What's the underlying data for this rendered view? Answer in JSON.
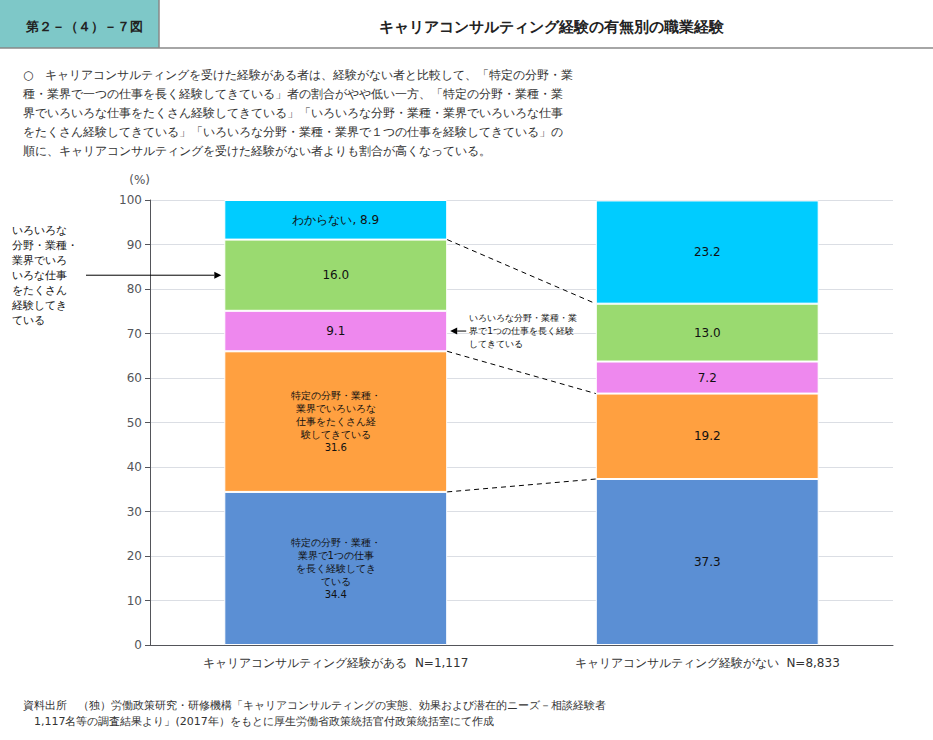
{
  "chart_data": {
    "type": "bar",
    "stacked": true,
    "figure_number": "第２－（４）－７図",
    "title": "キャリアコンサルティング経験の有無別の職業経験",
    "subtitle": "○　キャリアコンサルティングを受けた経験がある者は、経験がない者と比較して、「特定の分野・業\n種・業界で一つの仕事を長く経験してきている」者の割合がやや低い一方、「特定の分野・業種・業\n界でいろいろな仕事をたくさん経験してきている」「いろいろな分野・業種・業界でいろいろな仕事\nをたくさん経験してきている」「いろいろな分野・業種・業界で１つの仕事を経験してきている」の\n順に、キャリアコンサルティングを受けた経験がない者よりも割合が高くなっている。",
    "source": "資料出所　（独）労働政策研究・研修機構「キャリアコンサルティングの実態、効果および潜在的ニーズ－相談経験者\n　1,117名等の調査結果より」(2017年）をもとに厚生労働省政策統括官付政策統括室にて作成",
    "y_label": "(%)",
    "categories": [
      "キャリアコンサルティング経験がある  N=1,117",
      "キャリアコンサルティング経験がない  N=8,833"
    ],
    "series": [
      {
        "color": "#5B8FD4",
        "values": [
          34.4,
          37.3
        ],
        "value_labels": [
          "特定の分野・業種・\n業界で1つの仕事\nを長く経験してき\nている\n34.4",
          "37.3"
        ]
      },
      {
        "color": "#FFA040",
        "values": [
          31.6,
          19.2
        ],
        "value_labels": [
          "特定の分野・業種・\n業界でいろいろな\n仕事をたくさん経\n験してきている\n31.6",
          "19.2"
        ]
      },
      {
        "color": "#EE88EE",
        "values": [
          9.1,
          7.2
        ],
        "value_labels": [
          "9.1",
          "7.2"
        ],
        "annotation": {
          "text": "いろいろな分野・業種・業\n界で1つの仕事を長く経験\nしてきている",
          "category": "キャリアコンサルティング経験がある  N=1,117"
        }
      },
      {
        "color": "#9ADA70",
        "values": [
          16.0,
          13.0
        ],
        "value_labels": [
          "16.0",
          "13.0"
        ],
        "annotation": {
          "text": "いろいろな\n分野・業種・\n業界でいろ\nいろな仕事\nをたくさん\n経験してき\nている",
          "category": "キャリアコンサルティング経験がある  N=1,117"
        }
      },
      {
        "color": "#00CCFF",
        "values": [
          8.9,
          23.2
        ],
        "value_labels": [
          "わからない, 8.9",
          "23.2"
        ]
      }
    ],
    "ylim": [
      0,
      100
    ],
    "yticks": [
      0,
      10,
      20,
      30,
      40,
      50,
      60,
      70,
      80,
      90,
      100
    ],
    "grid": true,
    "data_labels": true
  }
}
